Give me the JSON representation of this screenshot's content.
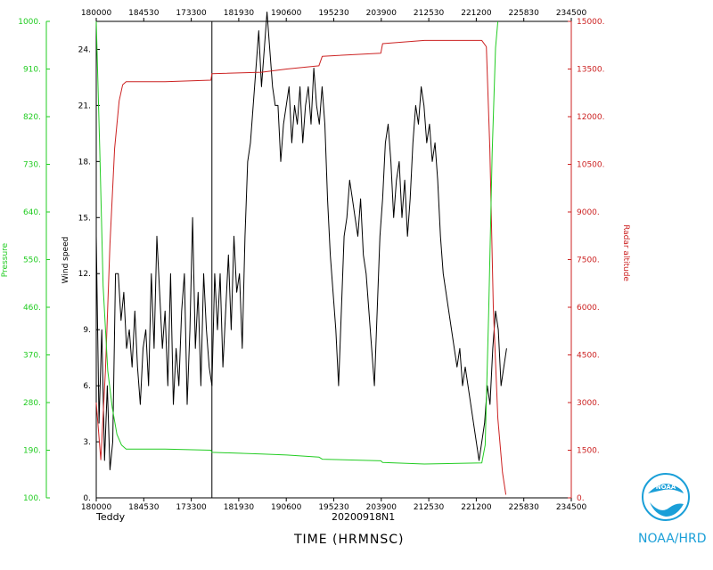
{
  "storm_name": "Teddy",
  "flight_id": "20200918N1",
  "x_axis_title": "TIME (HRMNSC)",
  "logo_text": "NOAA/HRD",
  "logo_inner_text": "NOAA",
  "colors": {
    "wind": "#000000",
    "pressure": "#22cc22",
    "altitude": "#cc2222",
    "logo": "#1a9fd8"
  },
  "chart_data": {
    "type": "line",
    "x_tick_labels": [
      "180000",
      "184530",
      "173300",
      "181930",
      "190600",
      "195230",
      "203900",
      "212530",
      "221200",
      "225830",
      "234500"
    ],
    "x_range_seconds": [
      0,
      20700
    ],
    "left_axis": {
      "label": "Pressure",
      "ticks": [
        "100.",
        "190.",
        "280.",
        "370.",
        "460.",
        "550.",
        "640.",
        "730.",
        "820.",
        "910.",
        "1000."
      ],
      "range": [
        100,
        1000
      ]
    },
    "inner_axis": {
      "label": "Wind speed",
      "ticks": [
        "0.",
        "3.",
        "6.",
        "9.",
        "12.",
        "15.",
        "18.",
        "21.",
        "24."
      ],
      "range": [
        0,
        25.5
      ]
    },
    "right_axis": {
      "label": "Radar altitude",
      "ticks": [
        "0.",
        "1500.",
        "3000.",
        "4500.",
        "6000.",
        "7500.",
        "9000.",
        "10500.",
        "12000.",
        "13500.",
        "15000."
      ],
      "range": [
        0,
        15000
      ]
    },
    "markers": [
      {
        "x_seconds": 5040
      }
    ],
    "series": [
      {
        "name": "Wind speed",
        "axis": "inner",
        "points": [
          [
            0,
            14
          ],
          [
            120,
            4
          ],
          [
            240,
            9
          ],
          [
            360,
            2
          ],
          [
            480,
            6
          ],
          [
            600,
            1.5
          ],
          [
            720,
            3
          ],
          [
            840,
            12
          ],
          [
            960,
            12
          ],
          [
            1080,
            9.5
          ],
          [
            1200,
            11
          ],
          [
            1320,
            8
          ],
          [
            1440,
            9
          ],
          [
            1560,
            7
          ],
          [
            1680,
            10
          ],
          [
            1800,
            7
          ],
          [
            1920,
            5
          ],
          [
            2040,
            8
          ],
          [
            2160,
            9
          ],
          [
            2280,
            6
          ],
          [
            2400,
            12
          ],
          [
            2520,
            8
          ],
          [
            2640,
            14
          ],
          [
            2760,
            11
          ],
          [
            2880,
            8
          ],
          [
            3000,
            10
          ],
          [
            3120,
            6
          ],
          [
            3240,
            12
          ],
          [
            3360,
            5
          ],
          [
            3480,
            8
          ],
          [
            3600,
            6
          ],
          [
            3720,
            10
          ],
          [
            3840,
            12
          ],
          [
            3960,
            5
          ],
          [
            4080,
            9
          ],
          [
            4200,
            15
          ],
          [
            4320,
            8
          ],
          [
            4440,
            11
          ],
          [
            4560,
            6
          ],
          [
            4680,
            12
          ],
          [
            4800,
            9
          ],
          [
            4920,
            7
          ],
          [
            5040,
            6
          ],
          [
            5160,
            12
          ],
          [
            5280,
            9
          ],
          [
            5400,
            12
          ],
          [
            5520,
            7
          ],
          [
            5640,
            10
          ],
          [
            5760,
            13
          ],
          [
            5880,
            9
          ],
          [
            6000,
            14
          ],
          [
            6120,
            11
          ],
          [
            6240,
            12
          ],
          [
            6360,
            8
          ],
          [
            6480,
            14
          ],
          [
            6600,
            18
          ],
          [
            6720,
            19
          ],
          [
            6840,
            21
          ],
          [
            6960,
            23
          ],
          [
            7080,
            25
          ],
          [
            7200,
            22
          ],
          [
            7320,
            24
          ],
          [
            7440,
            26
          ],
          [
            7560,
            24
          ],
          [
            7680,
            22
          ],
          [
            7800,
            21
          ],
          [
            7920,
            21
          ],
          [
            8040,
            18
          ],
          [
            8160,
            20
          ],
          [
            8280,
            21
          ],
          [
            8400,
            22
          ],
          [
            8520,
            19
          ],
          [
            8640,
            21
          ],
          [
            8760,
            20
          ],
          [
            8880,
            22
          ],
          [
            9000,
            19
          ],
          [
            9120,
            21
          ],
          [
            9240,
            22
          ],
          [
            9360,
            20
          ],
          [
            9480,
            23
          ],
          [
            9600,
            21
          ],
          [
            9720,
            20
          ],
          [
            9840,
            22
          ],
          [
            9960,
            20
          ],
          [
            10080,
            16
          ],
          [
            10200,
            13
          ],
          [
            10320,
            11
          ],
          [
            10440,
            9
          ],
          [
            10560,
            6
          ],
          [
            10680,
            10
          ],
          [
            10800,
            14
          ],
          [
            10920,
            15
          ],
          [
            11040,
            17
          ],
          [
            11160,
            16
          ],
          [
            11280,
            15
          ],
          [
            11400,
            14
          ],
          [
            11520,
            16
          ],
          [
            11640,
            13
          ],
          [
            11760,
            12
          ],
          [
            11880,
            10
          ],
          [
            12000,
            8
          ],
          [
            12120,
            6
          ],
          [
            12240,
            10
          ],
          [
            12360,
            14
          ],
          [
            12480,
            16
          ],
          [
            12600,
            19
          ],
          [
            12720,
            20
          ],
          [
            12840,
            18
          ],
          [
            12960,
            15
          ],
          [
            13080,
            17
          ],
          [
            13200,
            18
          ],
          [
            13320,
            15
          ],
          [
            13440,
            17
          ],
          [
            13560,
            14
          ],
          [
            13680,
            16
          ],
          [
            13800,
            19
          ],
          [
            13920,
            21
          ],
          [
            14040,
            20
          ],
          [
            14160,
            22
          ],
          [
            14280,
            21
          ],
          [
            14400,
            19
          ],
          [
            14520,
            20
          ],
          [
            14640,
            18
          ],
          [
            14760,
            19
          ],
          [
            14880,
            17
          ],
          [
            15000,
            14
          ],
          [
            15120,
            12
          ],
          [
            15240,
            11
          ],
          [
            15360,
            10
          ],
          [
            15480,
            9
          ],
          [
            15600,
            8
          ],
          [
            15720,
            7
          ],
          [
            15840,
            8
          ],
          [
            15960,
            6
          ],
          [
            16080,
            7
          ],
          [
            16200,
            6
          ],
          [
            16320,
            5
          ],
          [
            16440,
            4
          ],
          [
            16560,
            3
          ],
          [
            16680,
            2
          ],
          [
            16800,
            3
          ],
          [
            16920,
            4
          ],
          [
            17040,
            6
          ],
          [
            17160,
            5
          ],
          [
            17280,
            8
          ],
          [
            17400,
            10
          ],
          [
            17520,
            9
          ],
          [
            17640,
            6
          ],
          [
            17760,
            7
          ],
          [
            17880,
            8
          ]
        ]
      },
      {
        "name": "Radar altitude",
        "axis": "right",
        "points": [
          [
            0,
            3000
          ],
          [
            200,
            1200
          ],
          [
            400,
            4000
          ],
          [
            600,
            8000
          ],
          [
            800,
            11000
          ],
          [
            1000,
            12500
          ],
          [
            1150,
            13000
          ],
          [
            1300,
            13100
          ],
          [
            3000,
            13100
          ],
          [
            5000,
            13150
          ],
          [
            5040,
            13350
          ],
          [
            7200,
            13400
          ],
          [
            8300,
            13500
          ],
          [
            9700,
            13600
          ],
          [
            9850,
            13900
          ],
          [
            12400,
            14000
          ],
          [
            12480,
            14300
          ],
          [
            14300,
            14400
          ],
          [
            16800,
            14400
          ],
          [
            17000,
            14200
          ],
          [
            17150,
            11000
          ],
          [
            17300,
            6000
          ],
          [
            17500,
            2500
          ],
          [
            17700,
            800
          ],
          [
            17850,
            100
          ]
        ]
      },
      {
        "name": "Pressure",
        "axis": "left",
        "points": [
          [
            0,
            1000
          ],
          [
            150,
            760
          ],
          [
            300,
            500
          ],
          [
            500,
            340
          ],
          [
            700,
            270
          ],
          [
            900,
            220
          ],
          [
            1100,
            200
          ],
          [
            1300,
            192
          ],
          [
            3000,
            192
          ],
          [
            5000,
            190
          ],
          [
            5040,
            186
          ],
          [
            7200,
            183
          ],
          [
            8300,
            181
          ],
          [
            9700,
            177
          ],
          [
            9850,
            173
          ],
          [
            12400,
            170
          ],
          [
            12480,
            167
          ],
          [
            14300,
            164
          ],
          [
            16800,
            166
          ],
          [
            16950,
            200
          ],
          [
            17100,
            450
          ],
          [
            17250,
            750
          ],
          [
            17400,
            950
          ],
          [
            17500,
            1000
          ]
        ]
      }
    ]
  }
}
